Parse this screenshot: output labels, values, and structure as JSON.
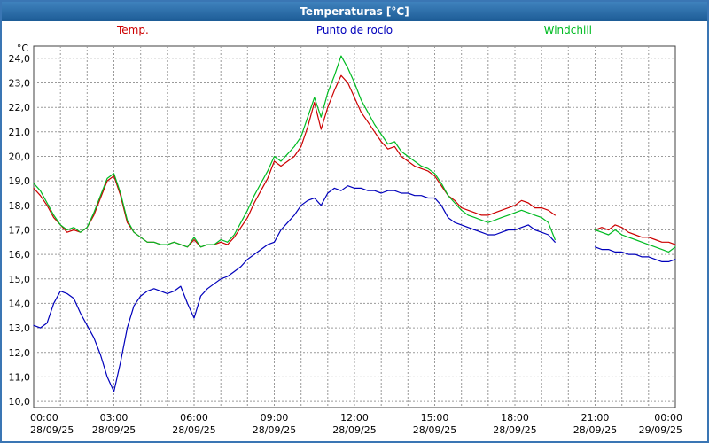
{
  "window": {
    "title": "Temperaturas [°C]"
  },
  "legend": [
    {
      "label": "Temp.",
      "color": "#cc0000"
    },
    {
      "label": "Punto de rocío",
      "color": "#0000bb"
    },
    {
      "label": "Windchill",
      "color": "#00bb22"
    }
  ],
  "chart_data": {
    "type": "line",
    "title": "Temperaturas [°C]",
    "xlabel": "",
    "ylabel": "°C",
    "x_unit": "hours",
    "xlim": [
      0,
      24
    ],
    "ylim": [
      10,
      24
    ],
    "grid": true,
    "legend_position": "top",
    "y_ticks": [
      {
        "value": 10,
        "label": "10,0"
      },
      {
        "value": 11,
        "label": "11,0"
      },
      {
        "value": 12,
        "label": "12,0"
      },
      {
        "value": 13,
        "label": "13,0"
      },
      {
        "value": 14,
        "label": "14,0"
      },
      {
        "value": 15,
        "label": "15,0"
      },
      {
        "value": 16,
        "label": "16,0"
      },
      {
        "value": 17,
        "label": "17,0"
      },
      {
        "value": 18,
        "label": "18,0"
      },
      {
        "value": 19,
        "label": "19,0"
      },
      {
        "value": 20,
        "label": "20,0"
      },
      {
        "value": 21,
        "label": "21,0"
      },
      {
        "value": 22,
        "label": "22,0"
      },
      {
        "value": 23,
        "label": "23,0"
      },
      {
        "value": 24,
        "label": "24,0"
      }
    ],
    "x_ticks": [
      {
        "hour": 0,
        "time": "00:00",
        "date": "28/09/25"
      },
      {
        "hour": 3,
        "time": "03:00",
        "date": "28/09/25"
      },
      {
        "hour": 6,
        "time": "06:00",
        "date": "28/09/25"
      },
      {
        "hour": 9,
        "time": "09:00",
        "date": "28/09/25"
      },
      {
        "hour": 12,
        "time": "12:00",
        "date": "28/09/25"
      },
      {
        "hour": 15,
        "time": "15:00",
        "date": "28/09/25"
      },
      {
        "hour": 18,
        "time": "18:00",
        "date": "28/09/25"
      },
      {
        "hour": 21,
        "time": "21:00",
        "date": "28/09/25"
      },
      {
        "hour": 24,
        "time": "00:00",
        "date": "29/09/25"
      }
    ],
    "series": [
      {
        "name": "Temp.",
        "color": "#cc0000",
        "points": [
          [
            0,
            18.7
          ],
          [
            0.25,
            18.4
          ],
          [
            0.5,
            18.0
          ],
          [
            0.75,
            17.5
          ],
          [
            1,
            17.2
          ],
          [
            1.25,
            16.9
          ],
          [
            1.5,
            17.0
          ],
          [
            1.75,
            16.9
          ],
          [
            2,
            17.1
          ],
          [
            2.25,
            17.6
          ],
          [
            2.5,
            18.3
          ],
          [
            2.75,
            19.0
          ],
          [
            3,
            19.2
          ],
          [
            3.25,
            18.4
          ],
          [
            3.5,
            17.3
          ],
          [
            3.75,
            16.9
          ],
          [
            4,
            16.7
          ],
          [
            4.25,
            16.5
          ],
          [
            4.5,
            16.5
          ],
          [
            4.75,
            16.4
          ],
          [
            5,
            16.4
          ],
          [
            5.25,
            16.5
          ],
          [
            5.5,
            16.4
          ],
          [
            5.75,
            16.3
          ],
          [
            6,
            16.6
          ],
          [
            6.25,
            16.3
          ],
          [
            6.5,
            16.4
          ],
          [
            6.75,
            16.4
          ],
          [
            7,
            16.5
          ],
          [
            7.25,
            16.4
          ],
          [
            7.5,
            16.7
          ],
          [
            7.75,
            17.1
          ],
          [
            8,
            17.5
          ],
          [
            8.25,
            18.1
          ],
          [
            8.5,
            18.6
          ],
          [
            8.75,
            19.1
          ],
          [
            9,
            19.8
          ],
          [
            9.25,
            19.6
          ],
          [
            9.5,
            19.8
          ],
          [
            9.75,
            20.0
          ],
          [
            10,
            20.4
          ],
          [
            10.25,
            21.2
          ],
          [
            10.5,
            22.2
          ],
          [
            10.75,
            21.1
          ],
          [
            11,
            22.0
          ],
          [
            11.25,
            22.7
          ],
          [
            11.5,
            23.3
          ],
          [
            11.75,
            23.0
          ],
          [
            12,
            22.4
          ],
          [
            12.25,
            21.8
          ],
          [
            12.5,
            21.4
          ],
          [
            12.75,
            21.0
          ],
          [
            13,
            20.6
          ],
          [
            13.25,
            20.3
          ],
          [
            13.5,
            20.4
          ],
          [
            13.75,
            20.0
          ],
          [
            14,
            19.8
          ],
          [
            14.25,
            19.6
          ],
          [
            14.5,
            19.5
          ],
          [
            14.75,
            19.4
          ],
          [
            15,
            19.2
          ],
          [
            15.25,
            18.8
          ],
          [
            15.5,
            18.4
          ],
          [
            15.75,
            18.2
          ],
          [
            16,
            17.9
          ],
          [
            16.25,
            17.8
          ],
          [
            16.5,
            17.7
          ],
          [
            16.75,
            17.6
          ],
          [
            17,
            17.6
          ],
          [
            17.25,
            17.7
          ],
          [
            17.5,
            17.8
          ],
          [
            17.75,
            17.9
          ],
          [
            18,
            18.0
          ],
          [
            18.25,
            18.2
          ],
          [
            18.5,
            18.1
          ],
          [
            18.75,
            17.9
          ],
          [
            19,
            17.9
          ],
          [
            19.25,
            17.8
          ],
          [
            19.5,
            17.6
          ],
          null,
          [
            21,
            17.0
          ],
          [
            21.25,
            17.1
          ],
          [
            21.5,
            17.0
          ],
          [
            21.75,
            17.2
          ],
          [
            22,
            17.1
          ],
          [
            22.25,
            16.9
          ],
          [
            22.5,
            16.8
          ],
          [
            22.75,
            16.7
          ],
          [
            23,
            16.7
          ],
          [
            23.25,
            16.6
          ],
          [
            23.5,
            16.5
          ],
          [
            23.75,
            16.5
          ],
          [
            24,
            16.4
          ]
        ]
      },
      {
        "name": "Punto de rocío",
        "color": "#0000bb",
        "points": [
          [
            0,
            13.1
          ],
          [
            0.25,
            13.0
          ],
          [
            0.5,
            13.2
          ],
          [
            0.75,
            14.0
          ],
          [
            1,
            14.5
          ],
          [
            1.25,
            14.4
          ],
          [
            1.5,
            14.2
          ],
          [
            1.75,
            13.6
          ],
          [
            2,
            13.1
          ],
          [
            2.25,
            12.6
          ],
          [
            2.5,
            11.9
          ],
          [
            2.75,
            11.0
          ],
          [
            3,
            10.4
          ],
          [
            3.25,
            11.6
          ],
          [
            3.5,
            13.0
          ],
          [
            3.75,
            13.9
          ],
          [
            4,
            14.3
          ],
          [
            4.25,
            14.5
          ],
          [
            4.5,
            14.6
          ],
          [
            4.75,
            14.5
          ],
          [
            5,
            14.4
          ],
          [
            5.25,
            14.5
          ],
          [
            5.5,
            14.7
          ],
          [
            5.75,
            14.0
          ],
          [
            6,
            13.4
          ],
          [
            6.25,
            14.3
          ],
          [
            6.5,
            14.6
          ],
          [
            6.75,
            14.8
          ],
          [
            7,
            15.0
          ],
          [
            7.25,
            15.1
          ],
          [
            7.5,
            15.3
          ],
          [
            7.75,
            15.5
          ],
          [
            8,
            15.8
          ],
          [
            8.25,
            16.0
          ],
          [
            8.5,
            16.2
          ],
          [
            8.75,
            16.4
          ],
          [
            9,
            16.5
          ],
          [
            9.25,
            17.0
          ],
          [
            9.5,
            17.3
          ],
          [
            9.75,
            17.6
          ],
          [
            10,
            18.0
          ],
          [
            10.25,
            18.2
          ],
          [
            10.5,
            18.3
          ],
          [
            10.75,
            18.0
          ],
          [
            11,
            18.5
          ],
          [
            11.25,
            18.7
          ],
          [
            11.5,
            18.6
          ],
          [
            11.75,
            18.8
          ],
          [
            12,
            18.7
          ],
          [
            12.25,
            18.7
          ],
          [
            12.5,
            18.6
          ],
          [
            12.75,
            18.6
          ],
          [
            13,
            18.5
          ],
          [
            13.25,
            18.6
          ],
          [
            13.5,
            18.6
          ],
          [
            13.75,
            18.5
          ],
          [
            14,
            18.5
          ],
          [
            14.25,
            18.4
          ],
          [
            14.5,
            18.4
          ],
          [
            14.75,
            18.3
          ],
          [
            15,
            18.3
          ],
          [
            15.25,
            18.0
          ],
          [
            15.5,
            17.5
          ],
          [
            15.75,
            17.3
          ],
          [
            16,
            17.2
          ],
          [
            16.25,
            17.1
          ],
          [
            16.5,
            17.0
          ],
          [
            16.75,
            16.9
          ],
          [
            17,
            16.8
          ],
          [
            17.25,
            16.8
          ],
          [
            17.5,
            16.9
          ],
          [
            17.75,
            17.0
          ],
          [
            18,
            17.0
          ],
          [
            18.25,
            17.1
          ],
          [
            18.5,
            17.2
          ],
          [
            18.75,
            17.0
          ],
          [
            19,
            16.9
          ],
          [
            19.25,
            16.8
          ],
          [
            19.5,
            16.5
          ],
          null,
          [
            21,
            16.3
          ],
          [
            21.25,
            16.2
          ],
          [
            21.5,
            16.2
          ],
          [
            21.75,
            16.1
          ],
          [
            22,
            16.1
          ],
          [
            22.25,
            16.0
          ],
          [
            22.5,
            16.0
          ],
          [
            22.75,
            15.9
          ],
          [
            23,
            15.9
          ],
          [
            23.25,
            15.8
          ],
          [
            23.5,
            15.7
          ],
          [
            23.75,
            15.7
          ],
          [
            24,
            15.8
          ]
        ]
      },
      {
        "name": "Windchill",
        "color": "#00bb22",
        "points": [
          [
            0,
            18.9
          ],
          [
            0.25,
            18.6
          ],
          [
            0.5,
            18.1
          ],
          [
            0.75,
            17.6
          ],
          [
            1,
            17.2
          ],
          [
            1.25,
            17.0
          ],
          [
            1.5,
            17.1
          ],
          [
            1.75,
            16.9
          ],
          [
            2,
            17.1
          ],
          [
            2.25,
            17.7
          ],
          [
            2.5,
            18.4
          ],
          [
            2.75,
            19.1
          ],
          [
            3,
            19.3
          ],
          [
            3.25,
            18.5
          ],
          [
            3.5,
            17.4
          ],
          [
            3.75,
            16.9
          ],
          [
            4,
            16.7
          ],
          [
            4.25,
            16.5
          ],
          [
            4.5,
            16.5
          ],
          [
            4.75,
            16.4
          ],
          [
            5,
            16.4
          ],
          [
            5.25,
            16.5
          ],
          [
            5.5,
            16.4
          ],
          [
            5.75,
            16.3
          ],
          [
            6,
            16.7
          ],
          [
            6.25,
            16.3
          ],
          [
            6.5,
            16.4
          ],
          [
            6.75,
            16.4
          ],
          [
            7,
            16.6
          ],
          [
            7.25,
            16.5
          ],
          [
            7.5,
            16.8
          ],
          [
            7.75,
            17.3
          ],
          [
            8,
            17.8
          ],
          [
            8.25,
            18.4
          ],
          [
            8.5,
            18.9
          ],
          [
            8.75,
            19.4
          ],
          [
            9,
            20.0
          ],
          [
            9.25,
            19.8
          ],
          [
            9.5,
            20.1
          ],
          [
            9.75,
            20.4
          ],
          [
            10,
            20.8
          ],
          [
            10.25,
            21.6
          ],
          [
            10.5,
            22.4
          ],
          [
            10.75,
            21.6
          ],
          [
            11,
            22.6
          ],
          [
            11.25,
            23.3
          ],
          [
            11.5,
            24.1
          ],
          [
            11.75,
            23.6
          ],
          [
            12,
            23.0
          ],
          [
            12.25,
            22.3
          ],
          [
            12.5,
            21.8
          ],
          [
            12.75,
            21.3
          ],
          [
            13,
            20.9
          ],
          [
            13.25,
            20.5
          ],
          [
            13.5,
            20.6
          ],
          [
            13.75,
            20.2
          ],
          [
            14,
            20.0
          ],
          [
            14.25,
            19.8
          ],
          [
            14.5,
            19.6
          ],
          [
            14.75,
            19.5
          ],
          [
            15,
            19.3
          ],
          [
            15.25,
            18.9
          ],
          [
            15.5,
            18.4
          ],
          [
            15.75,
            18.1
          ],
          [
            16,
            17.8
          ],
          [
            16.25,
            17.6
          ],
          [
            16.5,
            17.5
          ],
          [
            16.75,
            17.4
          ],
          [
            17,
            17.3
          ],
          [
            17.25,
            17.4
          ],
          [
            17.5,
            17.5
          ],
          [
            17.75,
            17.6
          ],
          [
            18,
            17.7
          ],
          [
            18.25,
            17.8
          ],
          [
            18.5,
            17.7
          ],
          [
            18.75,
            17.6
          ],
          [
            19,
            17.5
          ],
          [
            19.25,
            17.3
          ],
          [
            19.5,
            16.6
          ],
          null,
          [
            21,
            17.0
          ],
          [
            21.25,
            16.9
          ],
          [
            21.5,
            16.8
          ],
          [
            21.75,
            17.0
          ],
          [
            22,
            16.8
          ],
          [
            22.25,
            16.7
          ],
          [
            22.5,
            16.6
          ],
          [
            22.75,
            16.5
          ],
          [
            23,
            16.4
          ],
          [
            23.25,
            16.3
          ],
          [
            23.5,
            16.2
          ],
          [
            23.75,
            16.1
          ],
          [
            24,
            16.3
          ]
        ]
      }
    ]
  }
}
